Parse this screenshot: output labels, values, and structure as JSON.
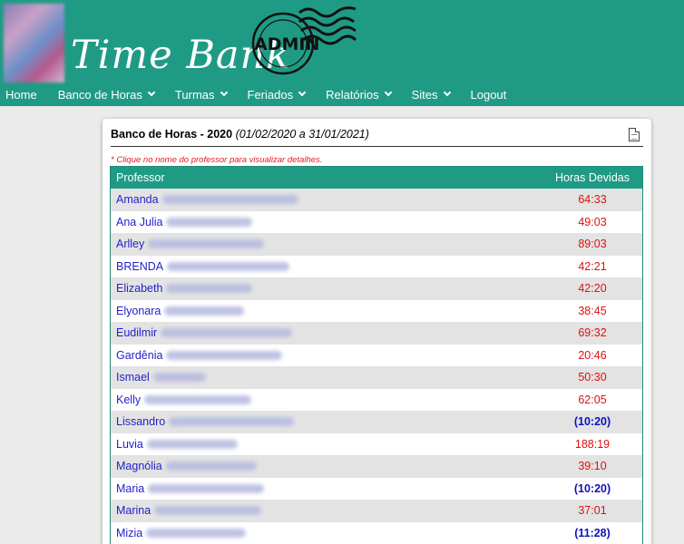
{
  "header": {
    "logo_text": "Time Bank",
    "stamp_label": "ADMIN"
  },
  "nav": [
    {
      "label": "Home",
      "dropdown": false
    },
    {
      "label": "Banco de Horas",
      "dropdown": true
    },
    {
      "label": "Turmas",
      "dropdown": true
    },
    {
      "label": "Feriados",
      "dropdown": true
    },
    {
      "label": "Relatórios",
      "dropdown": true
    },
    {
      "label": "Sites",
      "dropdown": true
    },
    {
      "label": "Logout",
      "dropdown": false
    }
  ],
  "panel": {
    "title_bold": "Banco de Horas - 2020",
    "title_period": "(01/02/2020 a 31/01/2021)",
    "hint": "* Clique no nome do professor para visualizar detalhes."
  },
  "table": {
    "col_professor": "Professor",
    "col_horas": "Horas Devidas",
    "rows": [
      {
        "name": "Amanda",
        "hours": "64:33",
        "status": "neg"
      },
      {
        "name": "Ana Julia",
        "hours": "49:03",
        "status": "neg"
      },
      {
        "name": "Arlley",
        "hours": "89:03",
        "status": "neg"
      },
      {
        "name": "BRENDA",
        "hours": "42:21",
        "status": "neg"
      },
      {
        "name": "Elizabeth",
        "hours": "42:20",
        "status": "neg"
      },
      {
        "name": "Elyonara",
        "hours": "38:45",
        "status": "neg"
      },
      {
        "name": "Eudilmir",
        "hours": "69:32",
        "status": "neg"
      },
      {
        "name": "Gardênia",
        "hours": "20:46",
        "status": "neg"
      },
      {
        "name": "Ismael",
        "hours": "50:30",
        "status": "neg"
      },
      {
        "name": "Kelly",
        "hours": "62:05",
        "status": "neg"
      },
      {
        "name": "Lissandro",
        "hours": "(10:20)",
        "status": "pos"
      },
      {
        "name": "Luvia",
        "hours": "188:19",
        "status": "neg"
      },
      {
        "name": "Magnólia",
        "hours": "39:10",
        "status": "neg"
      },
      {
        "name": "Maria",
        "hours": "(10:20)",
        "status": "pos"
      },
      {
        "name": "Marina",
        "hours": "37:01",
        "status": "neg"
      },
      {
        "name": "Mizia",
        "hours": "(11:28)",
        "status": "pos"
      }
    ]
  }
}
